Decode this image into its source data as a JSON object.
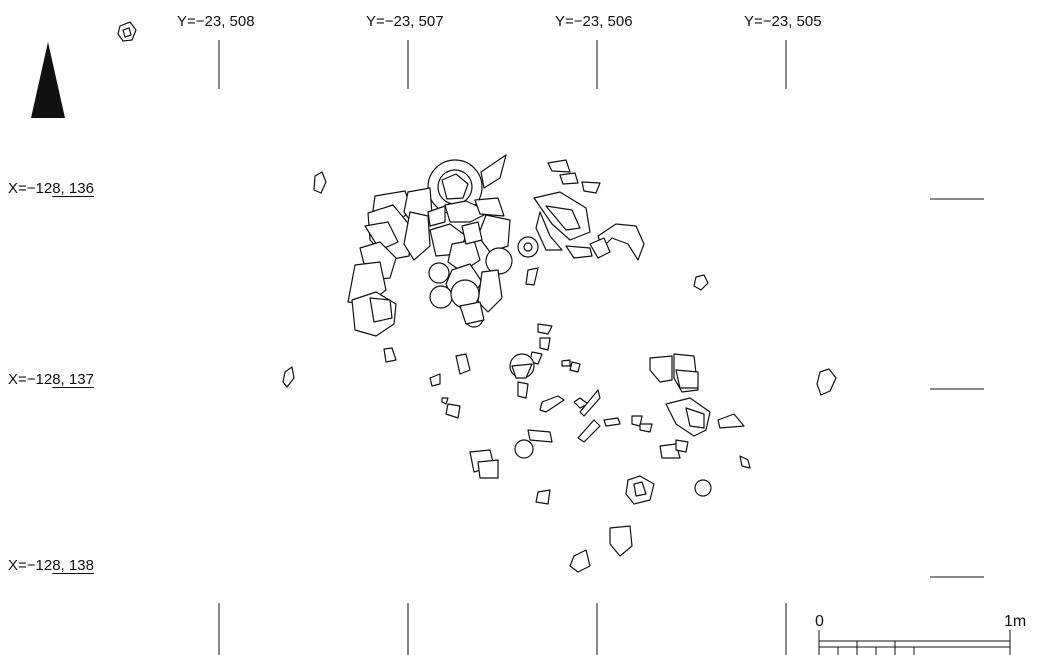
{
  "y_coords": [
    {
      "label": "Y=−23, 508"
    },
    {
      "label": "Y=−23, 507"
    },
    {
      "label": "Y=−23, 506"
    },
    {
      "label": "Y=−23, 505"
    }
  ],
  "x_coords": [
    {
      "prefix": "X=−12",
      "underlined": "8, 136"
    },
    {
      "prefix": "X=−12",
      "underlined": "8, 137"
    },
    {
      "prefix": "X=−12",
      "underlined": "8, 138"
    }
  ],
  "scale_bar": {
    "start_label": "0",
    "end_label": "1m",
    "divisions": 5
  },
  "north_arrow": {
    "icon": "north-arrow-icon"
  },
  "colors": {
    "line": "#111111",
    "background": "#ffffff"
  }
}
